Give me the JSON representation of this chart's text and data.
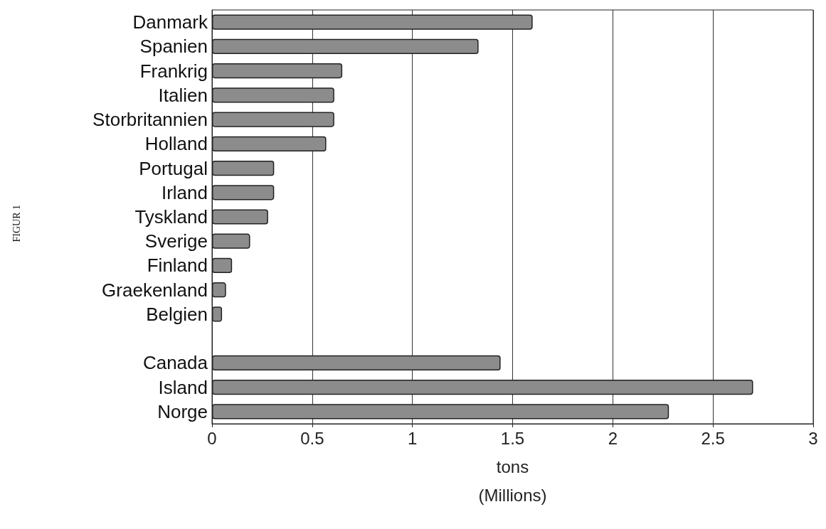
{
  "chart_data": {
    "type": "bar",
    "orientation": "horizontal",
    "xlabel": "tons\n(Millions)",
    "annotations": [
      "FIGUR 1"
    ],
    "categories": [
      "Danmark",
      "Spanien",
      "Frankrig",
      "Italien",
      "Storbritannien",
      "Holland",
      "Portugal",
      "Irland",
      "Tyskland",
      "Sverige",
      "Finland",
      "Graekenland",
      "Belgien",
      null,
      "Canada",
      "Island",
      "Norge"
    ],
    "values": [
      1.6,
      1.33,
      0.65,
      0.61,
      0.61,
      0.57,
      0.31,
      0.31,
      0.28,
      0.19,
      0.1,
      0.07,
      0.05,
      null,
      1.44,
      2.7,
      2.28
    ],
    "color": "#8c8c8c",
    "xlim": [
      0,
      3
    ],
    "xticks": [
      0,
      0.5,
      1,
      1.5,
      2,
      2.5,
      3
    ],
    "grid": "x"
  }
}
